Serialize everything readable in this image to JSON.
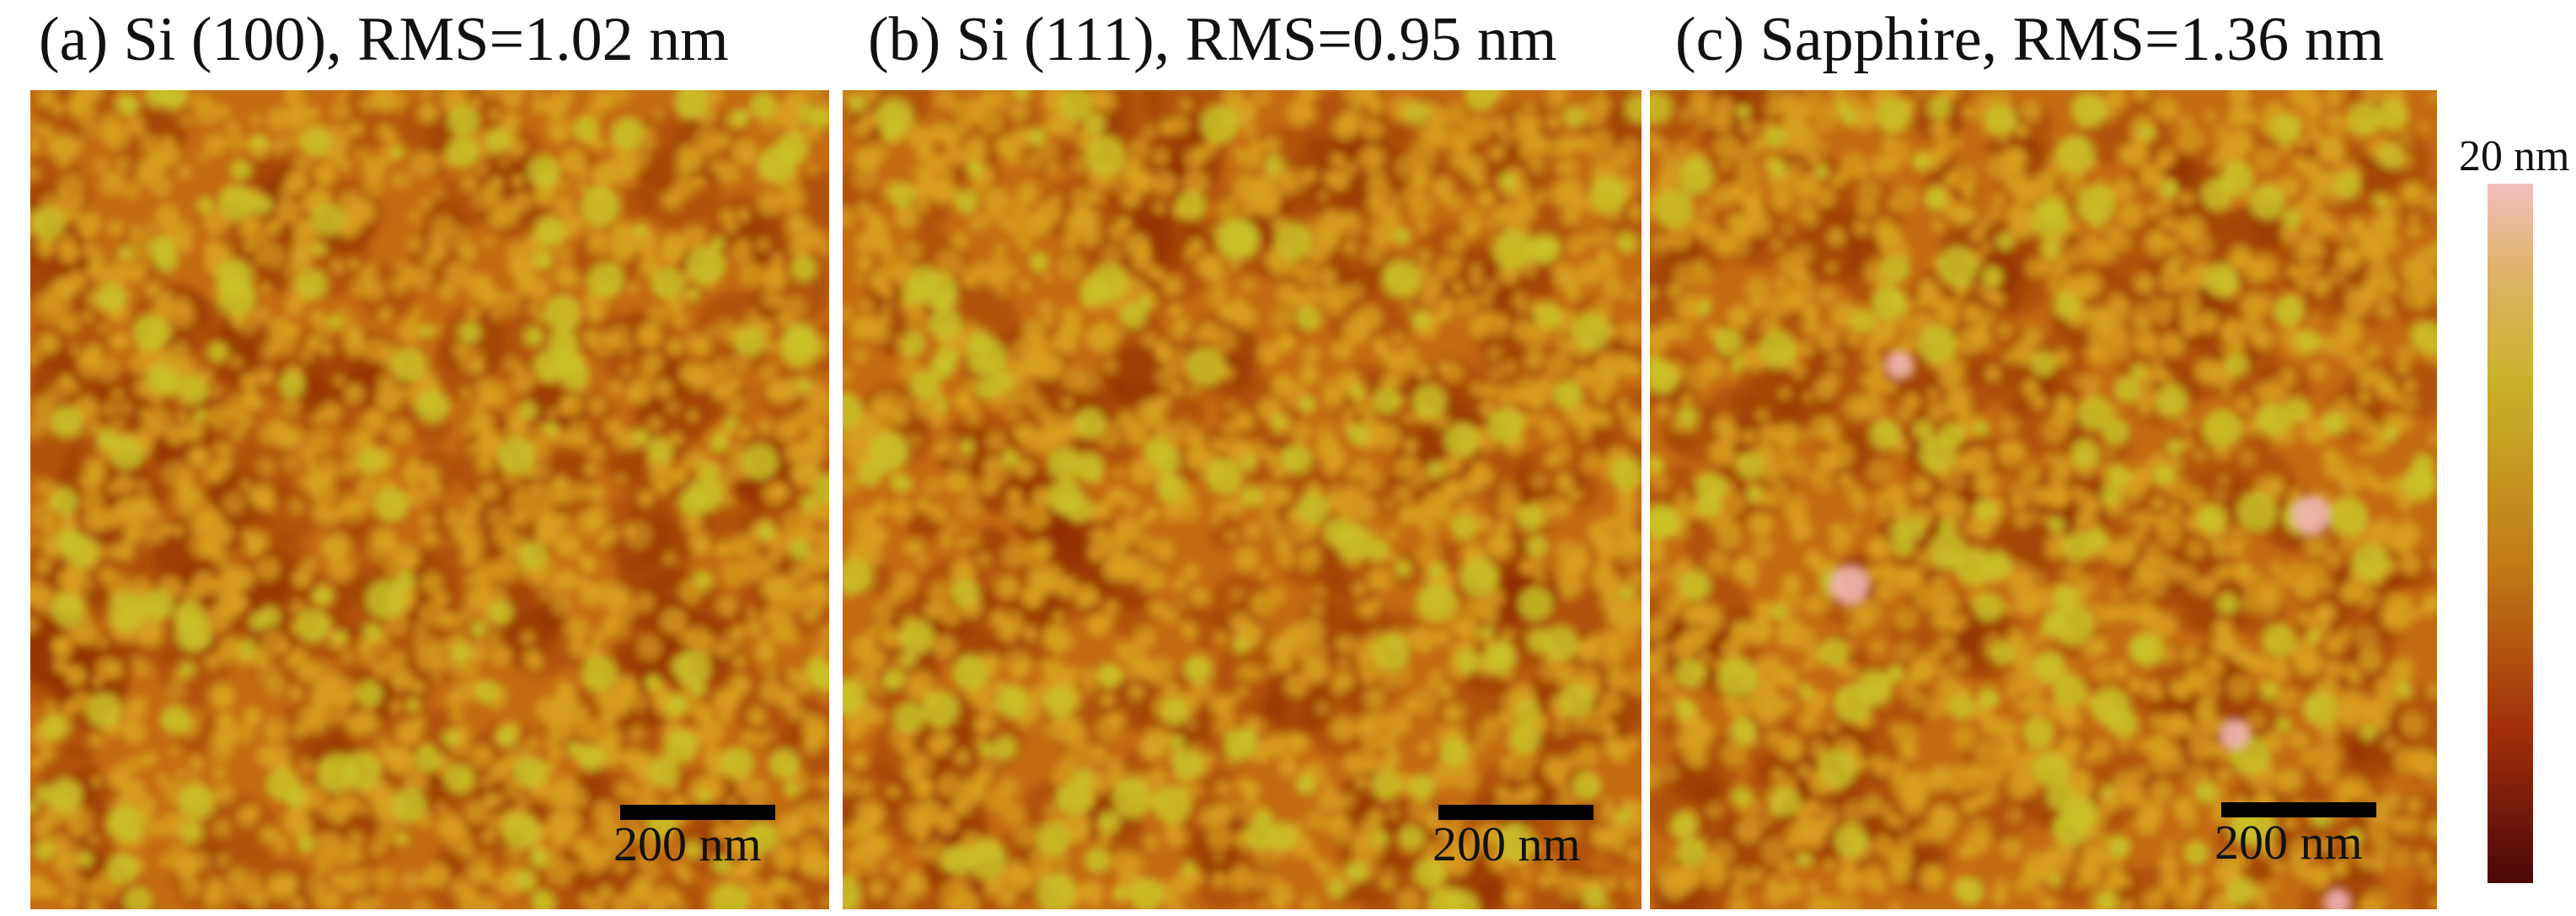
{
  "panels": [
    {
      "title": "(a) Si (100), RMS=1.02 nm",
      "scale_label": "200 nm"
    },
    {
      "title": "(b) Si (111), RMS=0.95 nm",
      "scale_label": "200 nm"
    },
    {
      "title": "(c) Sapphire, RMS=1.36 nm",
      "scale_label": "200 nm"
    }
  ],
  "colorbar": {
    "max_label": "20 nm",
    "colors": [
      "#f4c0c0",
      "#c9b22a",
      "#c07a15",
      "#a32f0a",
      "#4a0808"
    ]
  },
  "colors": {
    "base": "#c46c12",
    "grain": "#d8a020",
    "grain_high": "#c9c227",
    "peak": "#f0b4b4",
    "dark": "#8e2d06"
  }
}
